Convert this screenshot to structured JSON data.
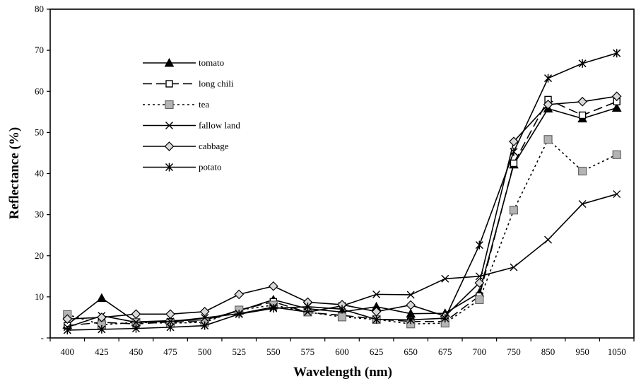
{
  "chart_data": {
    "type": "line",
    "title": "",
    "xlabel": "Wavelength (nm)",
    "ylabel": "Reflectance (%)",
    "categories": [
      "400",
      "425",
      "450",
      "475",
      "500",
      "525",
      "550",
      "575",
      "600",
      "625",
      "650",
      "675",
      "700",
      "750",
      "850",
      "950",
      "1050"
    ],
    "ylim": [
      0,
      80
    ],
    "yticks": [
      {
        "value": 0,
        "label": "-"
      },
      {
        "value": 10,
        "label": "10"
      },
      {
        "value": 20,
        "label": "20"
      },
      {
        "value": 30,
        "label": "30"
      },
      {
        "value": 40,
        "label": "40"
      },
      {
        "value": 50,
        "label": "50"
      },
      {
        "value": 60,
        "label": "60"
      },
      {
        "value": 70,
        "label": "70"
      },
      {
        "value": 80,
        "label": "80"
      }
    ],
    "grid": false,
    "legend_position": "top-left",
    "series": [
      {
        "name": "tomato",
        "marker": "triangle",
        "dash": "solid",
        "values": [
          3.2,
          9.7,
          3.9,
          4.2,
          4.4,
          6.6,
          9.3,
          7.1,
          6.3,
          7.6,
          5.9,
          6.0,
          11.0,
          42.2,
          55.8,
          53.4,
          56.0
        ]
      },
      {
        "name": "long chili",
        "marker": "square-open",
        "dash": "long",
        "values": [
          3.0,
          3.8,
          3.4,
          3.9,
          4.0,
          6.8,
          8.8,
          6.2,
          5.5,
          4.6,
          4.0,
          4.0,
          10.2,
          42.5,
          58.0,
          54.2,
          57.5
        ]
      },
      {
        "name": "tea",
        "marker": "square-gray",
        "dash": "dotted",
        "values": [
          5.7,
          3.2,
          3.8,
          3.6,
          3.8,
          6.8,
          8.0,
          6.3,
          5.1,
          4.5,
          3.4,
          3.6,
          9.3,
          31.1,
          48.3,
          40.6,
          44.6
        ]
      },
      {
        "name": "fallow land",
        "marker": "x",
        "dash": "solid",
        "values": [
          2.6,
          5.4,
          3.8,
          4.0,
          4.9,
          5.9,
          7.5,
          6.3,
          7.8,
          10.6,
          10.5,
          14.4,
          15.0,
          17.2,
          23.9,
          32.6,
          35.0
        ]
      },
      {
        "name": "cabbage",
        "marker": "diamond",
        "dash": "solid",
        "values": [
          4.6,
          5.0,
          5.8,
          5.8,
          6.4,
          10.6,
          12.6,
          8.7,
          8.1,
          6.4,
          8.0,
          5.3,
          13.4,
          47.8,
          56.8,
          57.5,
          58.8
        ]
      },
      {
        "name": "potato",
        "marker": "star",
        "dash": "solid",
        "values": [
          1.9,
          2.1,
          2.3,
          2.6,
          3.0,
          5.8,
          7.2,
          7.6,
          7.0,
          4.5,
          4.4,
          4.8,
          22.6,
          45.3,
          63.2,
          66.8,
          69.3
        ]
      }
    ]
  }
}
